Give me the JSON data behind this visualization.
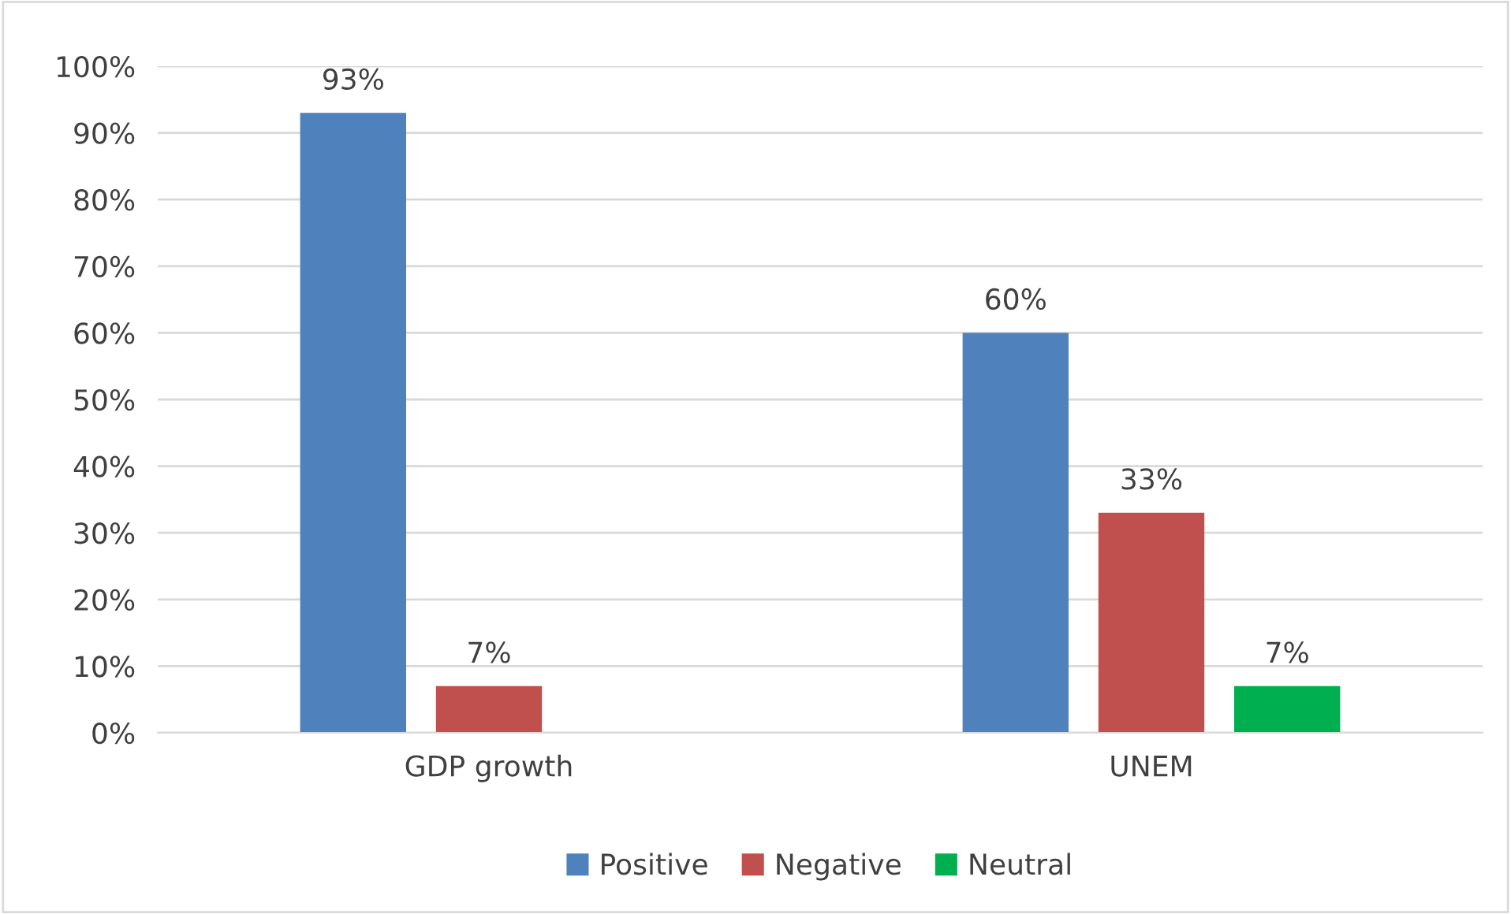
{
  "chart_data": {
    "type": "bar",
    "categories": [
      "GDP growth",
      "UNEM"
    ],
    "series": [
      {
        "name": "Positive",
        "color": "#4f81bd",
        "values": [
          93,
          60
        ],
        "value_labels": [
          "93%",
          "60%"
        ]
      },
      {
        "name": "Negative",
        "color": "#c0504d",
        "values": [
          7,
          33
        ],
        "value_labels": [
          "7%",
          "33%"
        ]
      },
      {
        "name": "Neutral",
        "color": "#00b050",
        "values": [
          null,
          7
        ],
        "value_labels": [
          null,
          "7%"
        ]
      }
    ],
    "ylim": [
      0,
      100
    ],
    "yticks": [
      {
        "value": 0,
        "label": "0%"
      },
      {
        "value": 10,
        "label": "10%"
      },
      {
        "value": 20,
        "label": "20%"
      },
      {
        "value": 30,
        "label": "30%"
      },
      {
        "value": 40,
        "label": "40%"
      },
      {
        "value": 50,
        "label": "50%"
      },
      {
        "value": 60,
        "label": "60%"
      },
      {
        "value": 70,
        "label": "70%"
      },
      {
        "value": 80,
        "label": "80%"
      },
      {
        "value": 90,
        "label": "90%"
      },
      {
        "value": 100,
        "label": "100%"
      }
    ],
    "grid": "y",
    "legend": "bottom"
  }
}
